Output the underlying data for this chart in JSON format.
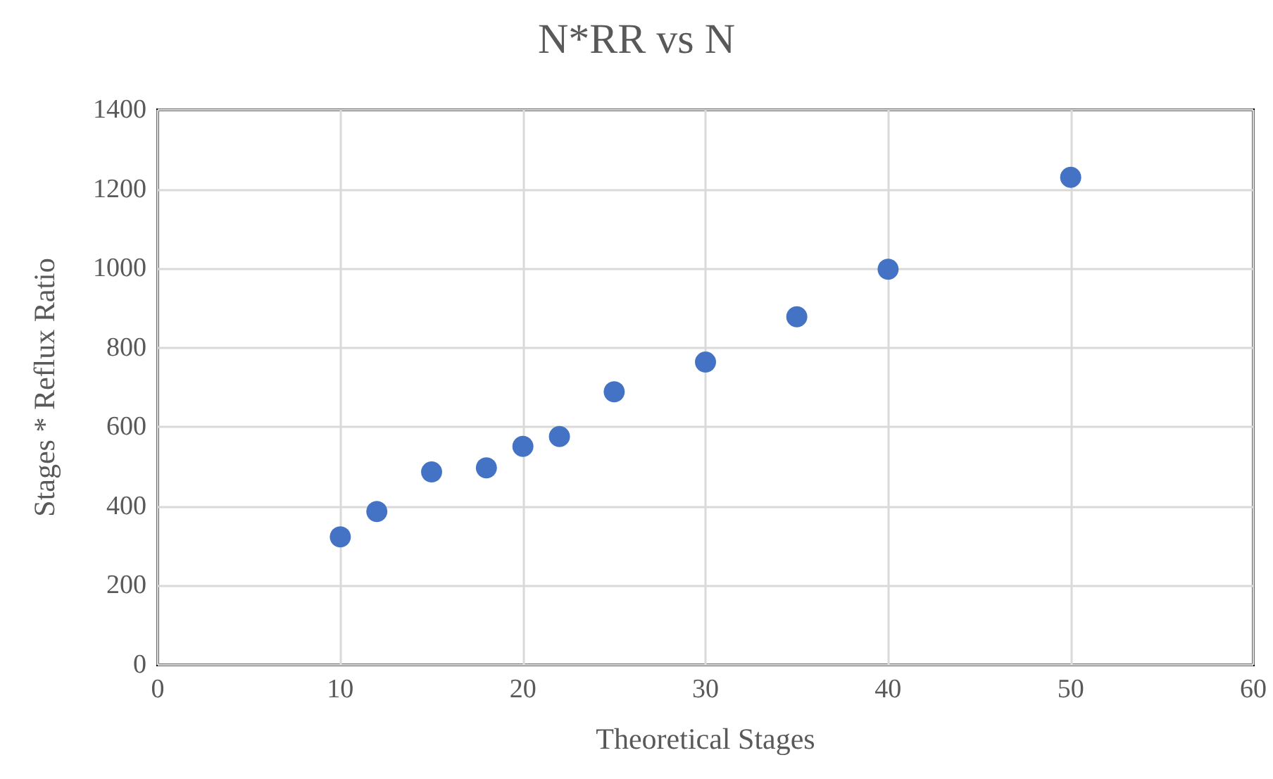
{
  "chart_data": {
    "type": "scatter",
    "title": "N*RR vs N",
    "xlabel": "Theoretical Stages",
    "ylabel": "Stages * Reflux Ratio",
    "x": [
      10,
      12,
      15,
      18,
      20,
      22,
      25,
      30,
      35,
      40,
      50
    ],
    "values": [
      323,
      387,
      487,
      497,
      551,
      576,
      689,
      764,
      878,
      998,
      1230
    ],
    "color": "#4472c4",
    "marker": "circle",
    "xlim": [
      0,
      60
    ],
    "xticks": [
      0,
      10,
      20,
      30,
      40,
      50,
      60
    ],
    "ylim": [
      0,
      1400
    ],
    "yticks": [
      0,
      200,
      400,
      600,
      800,
      1000,
      1200,
      1400
    ],
    "grid": true
  }
}
